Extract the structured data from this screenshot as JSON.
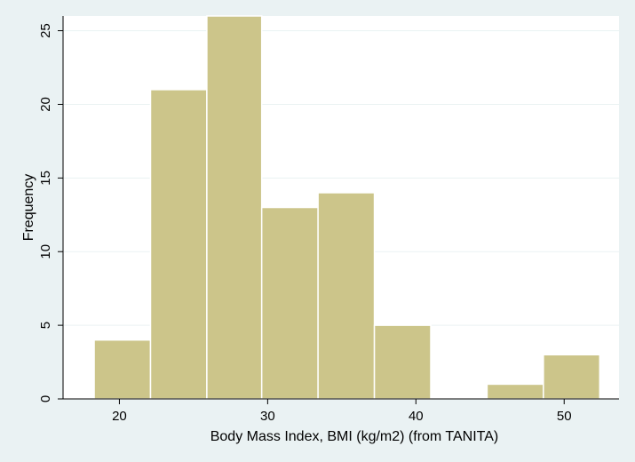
{
  "chart_data": {
    "type": "bar",
    "subtype": "histogram",
    "xlabel": "Body Mass Index, BMI (kg/m2) (from TANITA)",
    "ylabel": "Frequency",
    "xlim": [
      16.2,
      53.7
    ],
    "ylim": [
      0,
      26
    ],
    "x_ticks": [
      20,
      30,
      40,
      50
    ],
    "y_ticks": [
      0,
      5,
      10,
      15,
      20,
      25
    ],
    "bins": [
      {
        "start": 18.3,
        "end": 22.1,
        "value": 4
      },
      {
        "start": 22.1,
        "end": 25.9,
        "value": 21
      },
      {
        "start": 25.9,
        "end": 29.6,
        "value": 26
      },
      {
        "start": 29.6,
        "end": 33.4,
        "value": 13
      },
      {
        "start": 33.4,
        "end": 37.2,
        "value": 14
      },
      {
        "start": 37.2,
        "end": 41.0,
        "value": 5
      },
      {
        "start": 41.0,
        "end": 44.8,
        "value": 0
      },
      {
        "start": 44.8,
        "end": 48.6,
        "value": 1
      },
      {
        "start": 48.6,
        "end": 52.4,
        "value": 3
      }
    ],
    "grid": true,
    "colors": {
      "bar_fill": "#ccc58a",
      "bar_stroke": "#ffffff",
      "plot_background": "#ffffff",
      "page_background": "#eaf2f3",
      "grid": "#eaf2f3",
      "axis": "#000000"
    }
  }
}
